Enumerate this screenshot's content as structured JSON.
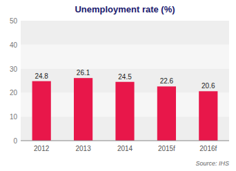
{
  "chart_data": {
    "type": "bar",
    "title": "Unemployment rate (%)",
    "categories": [
      "2012",
      "2013",
      "2014",
      "2015f",
      "2016f"
    ],
    "values": [
      24.8,
      26.1,
      24.5,
      22.6,
      20.6
    ],
    "color": "#e8174a",
    "ylim": [
      0,
      50
    ],
    "yticks": [
      0,
      10,
      20,
      30,
      40,
      50
    ],
    "data_labels": true,
    "annotations": [
      "Source: IHS"
    ]
  }
}
